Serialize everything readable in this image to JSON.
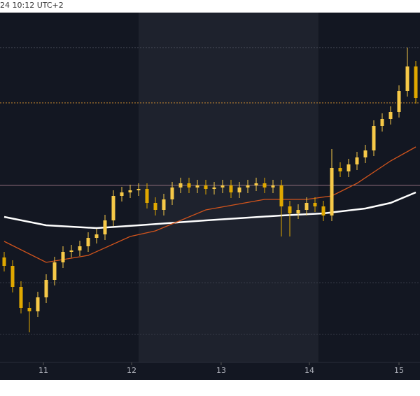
{
  "header_text": "24 10:12 UTC+2",
  "chart_data": {
    "type": "candlestick",
    "xlim": [
      -0.5,
      49.5
    ],
    "ylim": [
      0,
      100
    ],
    "xticks": [
      {
        "value": 4.67,
        "label": "11"
      },
      {
        "value": 15.17,
        "label": "12"
      },
      {
        "value": 25.83,
        "label": "13"
      },
      {
        "value": 36.33,
        "label": "14"
      },
      {
        "value": 47,
        "label": "15"
      }
    ],
    "highlight": [
      16,
      37.4
    ],
    "up_color": "#f7c948",
    "down_color": "#e0a800",
    "open": [
      30,
      27.6,
      21.6,
      15.6,
      14.6,
      18.6,
      23.6,
      28.6,
      31.6,
      32,
      33.2,
      35.6,
      36.6,
      40.6,
      47.6,
      48.6,
      49.2,
      49.6,
      45.6,
      43.6,
      46.6,
      50,
      51.2,
      50,
      50.6,
      49.6,
      50,
      50.6,
      48.6,
      50,
      50.6,
      51.2,
      50,
      50.6,
      44.6,
      42.6,
      43.6,
      45.6,
      44.6,
      42,
      55.6,
      54.6,
      56.6,
      58.6,
      60.6,
      67.6,
      69.6,
      71.6,
      77.6,
      84.6
    ],
    "high": [
      31.6,
      29.2,
      23.2,
      17.2,
      20.2,
      25.2,
      30.2,
      33.2,
      33.6,
      34.8,
      37.2,
      38.2,
      42.2,
      49.2,
      50.2,
      50.8,
      51.2,
      51.2,
      47.2,
      48.2,
      51.6,
      52.8,
      52.8,
      52.2,
      52.2,
      51.6,
      52.2,
      52.2,
      51.6,
      52.2,
      52.8,
      52.8,
      52.2,
      52.2,
      46.2,
      45.2,
      47.2,
      47.2,
      46.2,
      61,
      57.2,
      58.2,
      60.2,
      62.2,
      69.2,
      71.2,
      73.2,
      79.2,
      90,
      86.2
    ],
    "low": [
      26,
      20,
      14,
      8.6,
      13,
      17,
      22,
      27,
      30,
      30.4,
      31.6,
      34,
      35,
      39,
      46,
      47,
      47.6,
      44,
      42,
      42,
      45,
      48.4,
      48.4,
      48.4,
      48,
      48,
      48.4,
      47,
      47,
      48.4,
      49,
      48.4,
      48.4,
      36,
      36,
      41,
      42,
      43,
      40.4,
      40.4,
      53,
      53,
      55,
      57,
      59,
      66,
      68,
      70,
      76,
      74
    ],
    "close": [
      27.6,
      21.6,
      15.6,
      14.6,
      18.6,
      23.6,
      28.6,
      31.6,
      32,
      33.2,
      35.6,
      36.6,
      40.6,
      47.6,
      48.6,
      49.2,
      49.6,
      45.6,
      43.6,
      46.6,
      50,
      51.2,
      50,
      50.6,
      49.6,
      50,
      50.6,
      48.6,
      50,
      50.6,
      51.2,
      50,
      50.6,
      44.6,
      42.6,
      43.6,
      45.6,
      44.6,
      42,
      55.6,
      54.6,
      56.6,
      58.6,
      60.6,
      67.6,
      69.6,
      71.6,
      77.6,
      84.6,
      75.6
    ],
    "lines": [
      {
        "color": "#ffffff",
        "width": 2.5,
        "x": [
          0,
          5,
          11,
          16,
          24,
          33,
          38,
          43,
          46,
          49
        ],
        "values": [
          41.6,
          39.2,
          38.4,
          39.2,
          40.6,
          42,
          42.6,
          44,
          45.6,
          48.6
        ]
      },
      {
        "color": "#d2541c",
        "width": 1.3,
        "x": [
          0,
          5,
          10,
          15,
          18,
          24,
          31,
          36,
          39,
          42,
          46,
          49
        ],
        "values": [
          34.6,
          28.6,
          30.6,
          36,
          37.6,
          43.6,
          46.6,
          46.6,
          47.6,
          51.2,
          57.6,
          61.6
        ]
      }
    ],
    "hlines": [
      90,
      74.2,
      50.6,
      22.8,
      8
    ],
    "hline_colors": [
      "#4a4e5a",
      "#c8882f",
      "#8b6a78",
      "#363a46",
      "#363a46"
    ],
    "hline_dashed": [
      true,
      true,
      false,
      true,
      true
    ]
  }
}
